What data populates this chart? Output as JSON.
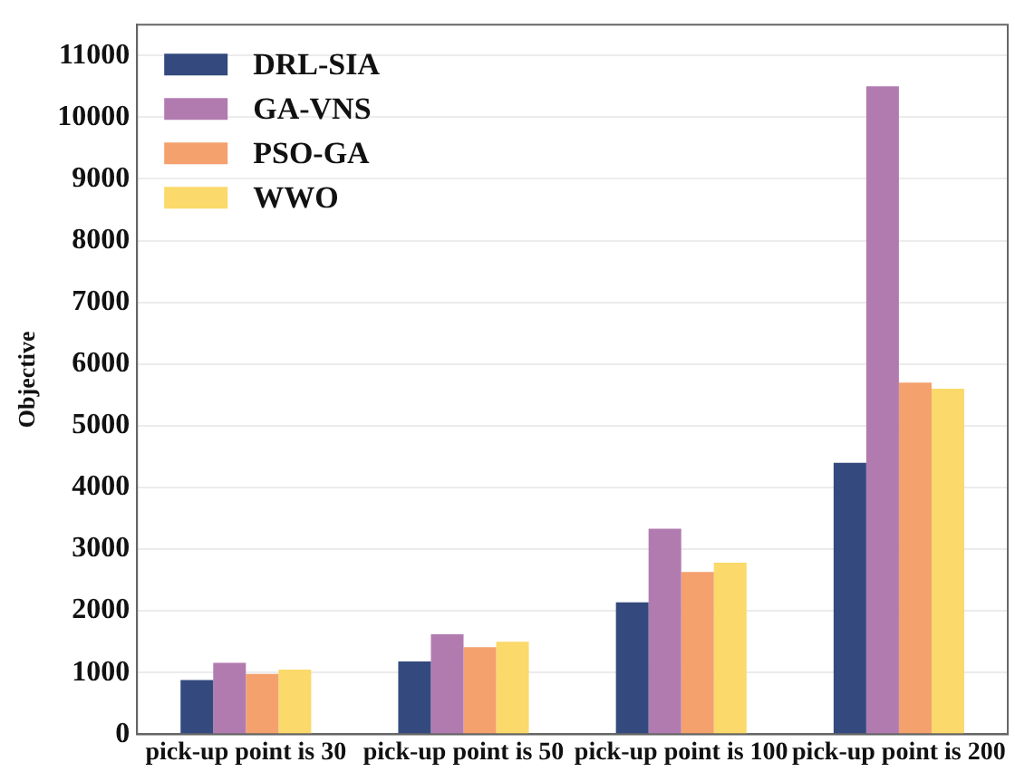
{
  "chart_data": {
    "type": "bar",
    "ylabel": "Objective",
    "categories": [
      "pick-up point is 30",
      "pick-up point is 50",
      "pick-up point is 100",
      "pick-up point is 200"
    ],
    "series": [
      {
        "name": "DRL-SIA",
        "color": "#344a7e",
        "values": [
          880,
          1180,
          2140,
          4400
        ]
      },
      {
        "name": "GA-VNS",
        "color": "#b27bb0",
        "values": [
          1160,
          1620,
          3330,
          10500
        ]
      },
      {
        "name": "PSO-GA",
        "color": "#f4a16e",
        "values": [
          980,
          1410,
          2630,
          5700
        ]
      },
      {
        "name": "WWO",
        "color": "#fbd96a",
        "values": [
          1050,
          1500,
          2780,
          5600
        ]
      }
    ],
    "ylim": [
      0,
      11500
    ],
    "yticks": [
      0,
      1000,
      2000,
      3000,
      4000,
      5000,
      6000,
      7000,
      8000,
      9000,
      10000,
      11000
    ],
    "grid": "y",
    "legend": "top left"
  }
}
